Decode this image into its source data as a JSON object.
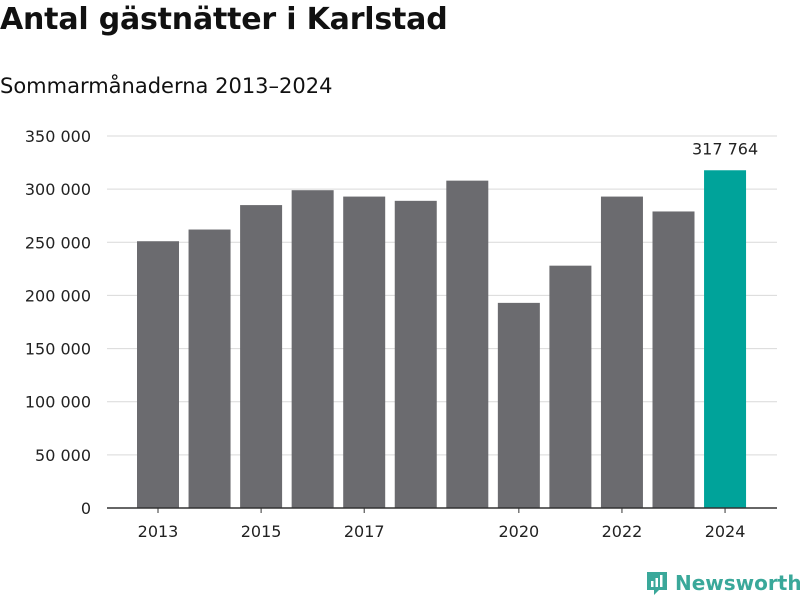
{
  "title": "Antal gästnätter i Karlstad",
  "subtitle": "Sommarmånaderna 2013–2024",
  "brand": "Newsworthy",
  "colors": {
    "bar": "#6b6b6f",
    "highlight": "#00a39a",
    "grid": "#d9d9d9",
    "axis": "#333333",
    "brand": "#3aa89a"
  },
  "chart_data": {
    "type": "bar",
    "title": "Antal gästnätter i Karlstad",
    "subtitle": "Sommarmånaderna 2013–2024",
    "categories": [
      "2013",
      "2014",
      "2015",
      "2016",
      "2017",
      "2018",
      "2019",
      "2020",
      "2021",
      "2022",
      "2023",
      "2024"
    ],
    "values": [
      251000,
      262000,
      285000,
      299000,
      293000,
      289000,
      308000,
      193000,
      228000,
      293000,
      279000,
      317764
    ],
    "highlight_index": 11,
    "highlight_label": "317 764",
    "x_tick_labels": [
      "2013",
      "2015",
      "2017",
      "2020",
      "2022",
      "2024"
    ],
    "y_ticks": [
      0,
      50000,
      100000,
      150000,
      200000,
      250000,
      300000,
      350000
    ],
    "y_tick_labels": [
      "0",
      "50 000",
      "100 000",
      "150 000",
      "200 000",
      "250 000",
      "300 000",
      "350 000"
    ],
    "ylim": [
      0,
      350000
    ],
    "grid": true,
    "legend": "none"
  }
}
